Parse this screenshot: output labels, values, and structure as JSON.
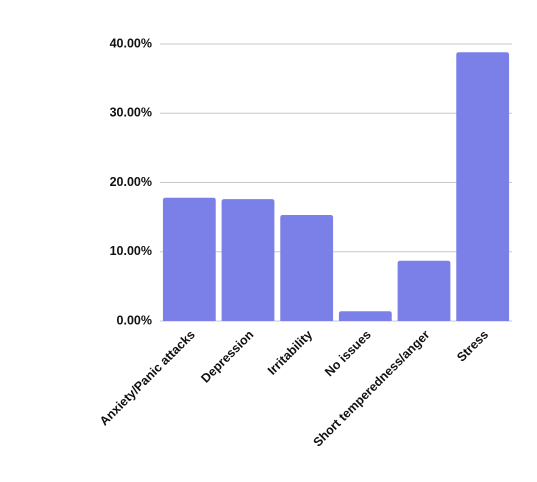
{
  "chart_data": {
    "type": "bar",
    "categories": [
      "Anxiety/Panic attacks",
      "Depression",
      "Irritability",
      "No issues",
      "Short temperedness/anger",
      "Stress"
    ],
    "values": [
      17.8,
      17.6,
      15.3,
      1.4,
      8.7,
      38.8
    ],
    "color": "#7b7fe8",
    "ylim": [
      0,
      40
    ],
    "yticks": [
      {
        "value": 0,
        "label": "0.00%"
      },
      {
        "value": 10,
        "label": "10.00%"
      },
      {
        "value": 20,
        "label": "20.00%"
      },
      {
        "value": 30,
        "label": "30.00%"
      },
      {
        "value": 40,
        "label": "40.00%"
      }
    ],
    "grid": true
  }
}
